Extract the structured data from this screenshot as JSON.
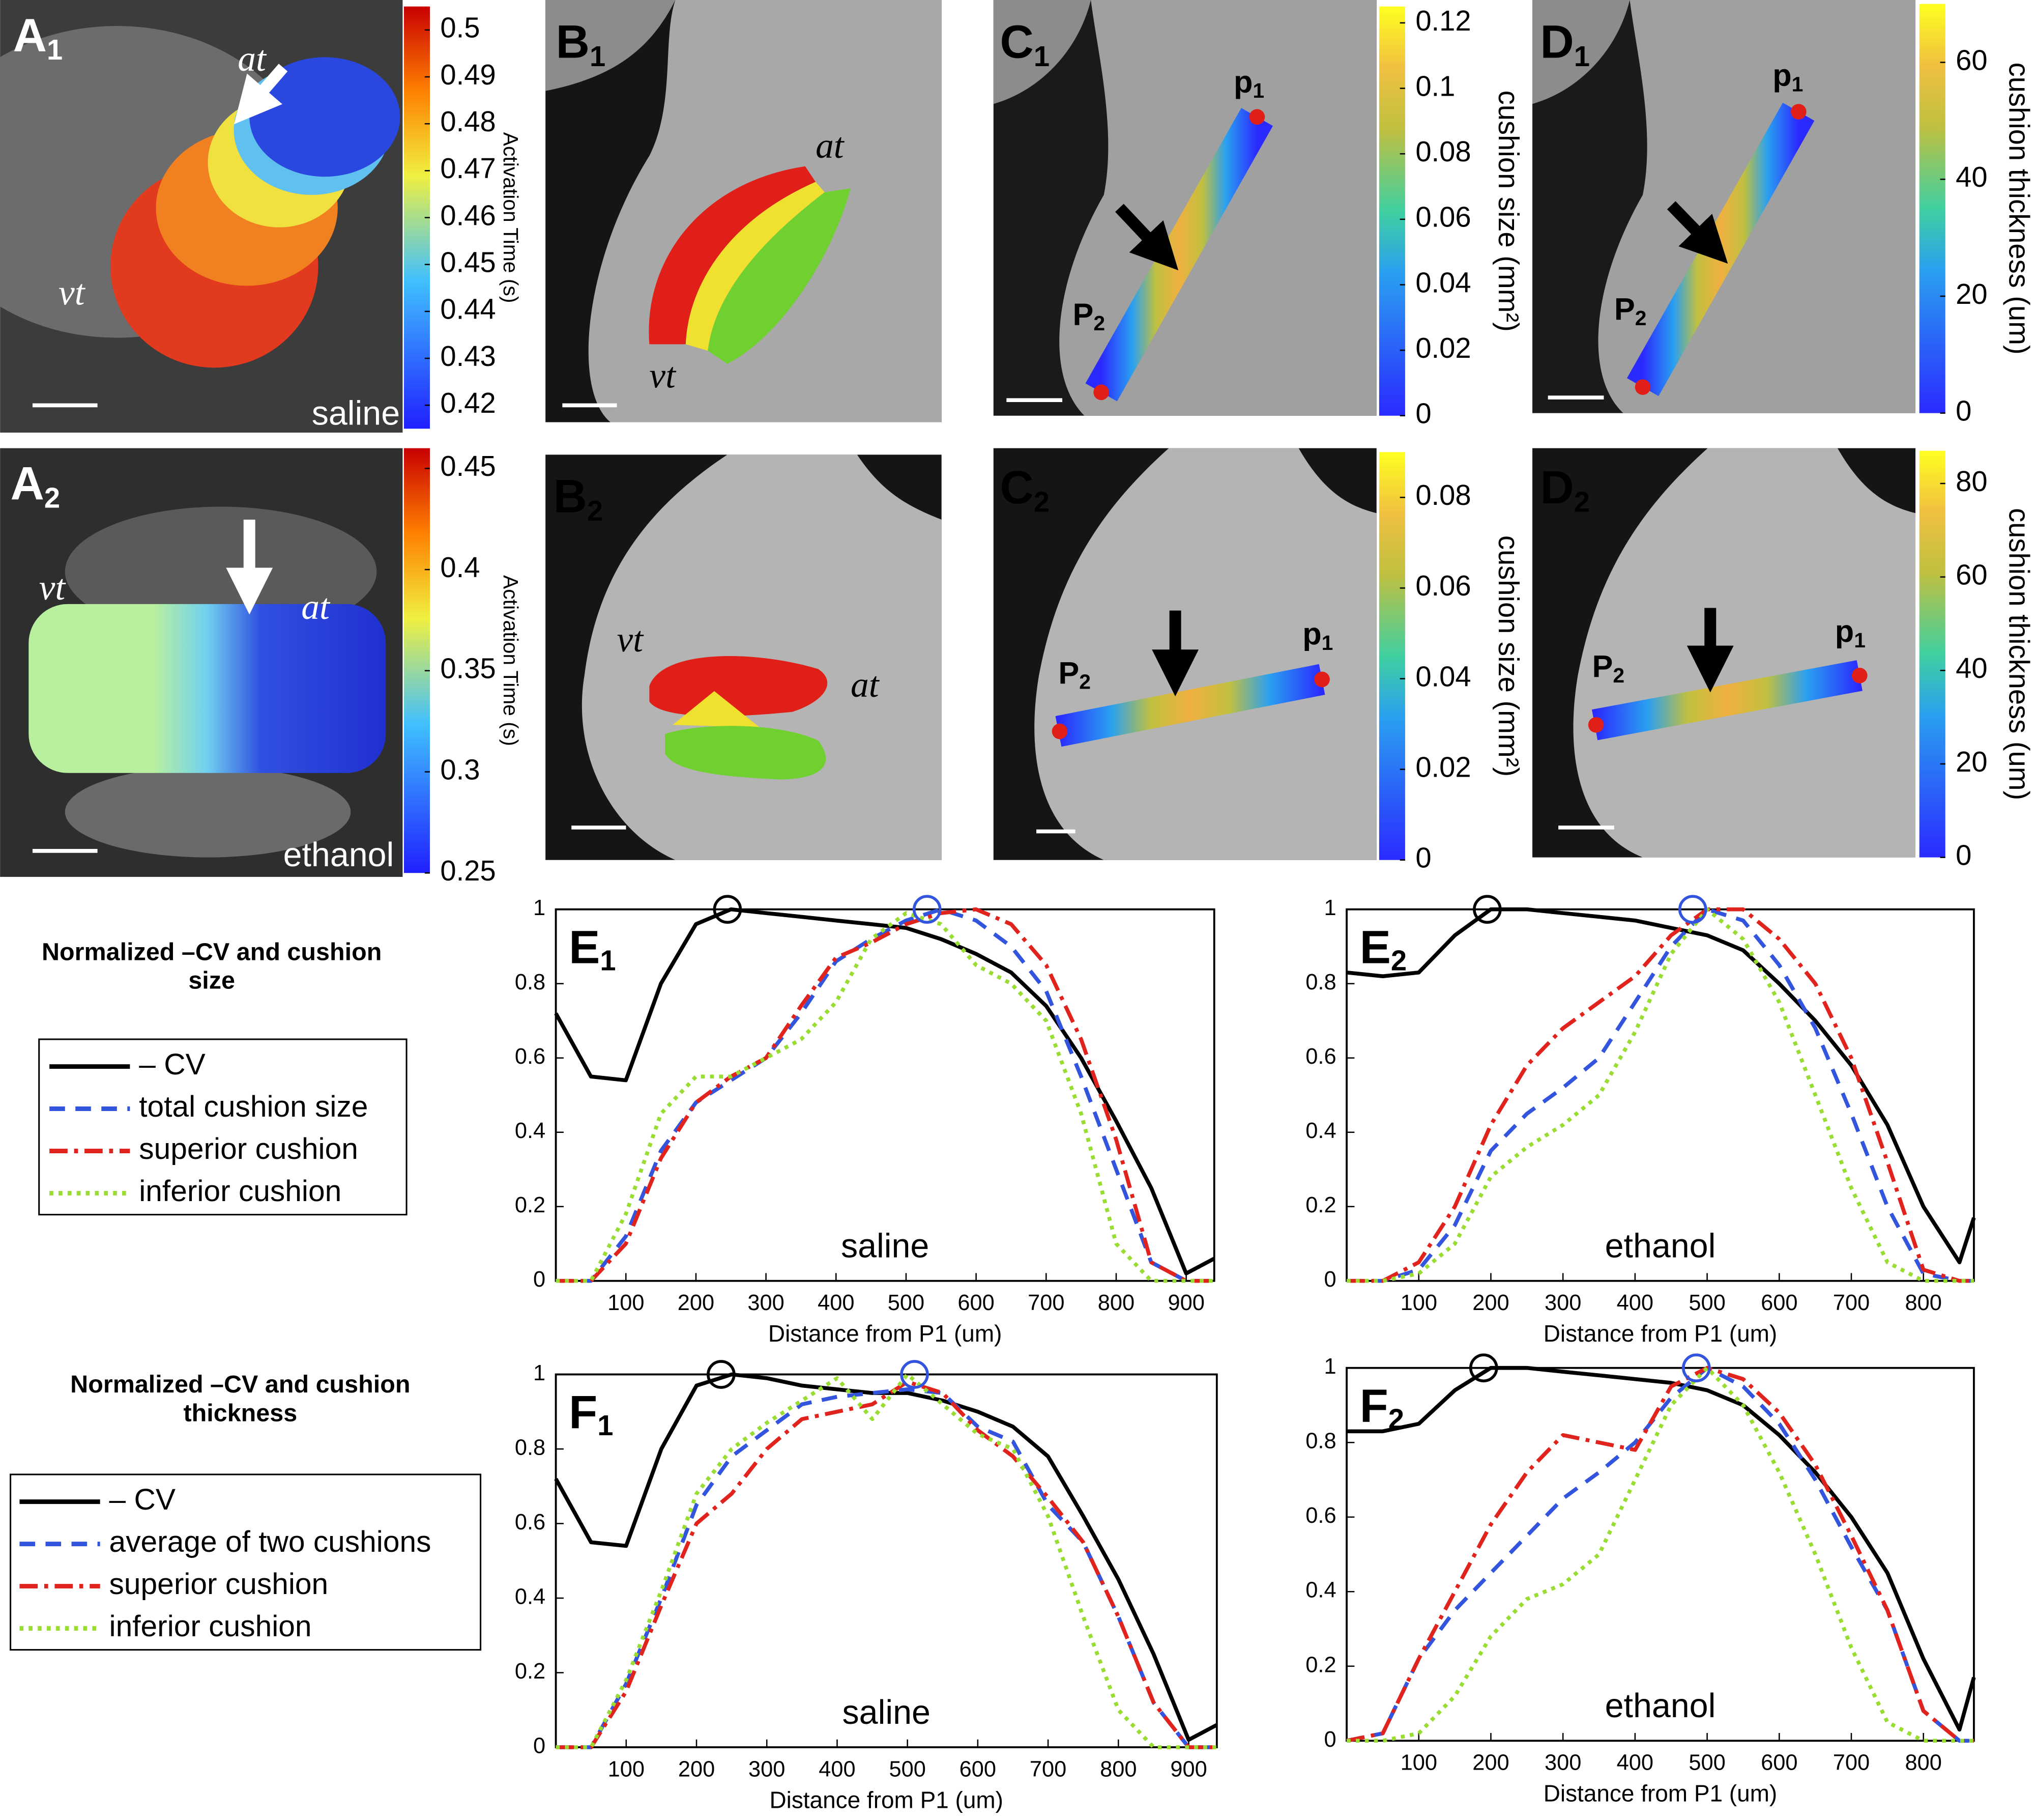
{
  "image_panels": [
    {
      "label": {
        "letter": "A",
        "sub": "1"
      },
      "annotations": [
        "at",
        "vt",
        "saline"
      ],
      "colorbar": {
        "label": "Activation Time (s)",
        "colormap": "jet",
        "lim": [
          0.415,
          0.505
        ],
        "ticks": [
          0.42,
          0.43,
          0.44,
          0.45,
          0.46,
          0.47,
          0.48,
          0.49,
          0.5
        ]
      }
    },
    {
      "label": {
        "letter": "A",
        "sub": "2"
      },
      "annotations": [
        "vt",
        "at",
        "ethanol"
      ],
      "colorbar": {
        "label": "Activation Time (s)",
        "colormap": "jet",
        "lim": [
          0.25,
          0.46
        ],
        "ticks": [
          0.25,
          0.3,
          0.35,
          0.4,
          0.45
        ]
      }
    },
    {
      "label": {
        "letter": "B",
        "sub": "1"
      },
      "annotations": [
        "at",
        "vt"
      ]
    },
    {
      "label": {
        "letter": "B",
        "sub": "2"
      },
      "annotations": [
        "vt",
        "at"
      ]
    },
    {
      "label": {
        "letter": "C",
        "sub": "1"
      },
      "points": [
        {
          "letter": "p",
          "sub": "1"
        },
        {
          "letter": "P",
          "sub": "2"
        }
      ],
      "colorbar": {
        "label": "cushion size (mm²)",
        "colormap": "parula",
        "lim": [
          0,
          0.125
        ],
        "ticks": [
          0,
          0.02,
          0.04,
          0.06,
          0.08,
          0.1,
          0.12
        ]
      }
    },
    {
      "label": {
        "letter": "C",
        "sub": "2"
      },
      "points": [
        {
          "letter": "P",
          "sub": "2"
        },
        {
          "letter": "p",
          "sub": "1"
        }
      ],
      "colorbar": {
        "label": "cushion size (mm²)",
        "colormap": "parula",
        "lim": [
          0,
          0.09
        ],
        "ticks": [
          0,
          0.02,
          0.04,
          0.06,
          0.08
        ]
      }
    },
    {
      "label": {
        "letter": "D",
        "sub": "1"
      },
      "points": [
        {
          "letter": "p",
          "sub": "1"
        },
        {
          "letter": "P",
          "sub": "2"
        }
      ],
      "colorbar": {
        "label": "cushion thickness (um)",
        "colormap": "parula",
        "lim": [
          0,
          70
        ],
        "ticks": [
          0,
          20,
          40,
          60
        ]
      }
    },
    {
      "label": {
        "letter": "D",
        "sub": "2"
      },
      "points": [
        {
          "letter": "P",
          "sub": "2"
        },
        {
          "letter": "p",
          "sub": "1"
        }
      ],
      "colorbar": {
        "label": "cushion thickness (um)",
        "colormap": "parula",
        "lim": [
          0,
          87
        ],
        "ticks": [
          0,
          20,
          40,
          60,
          80
        ]
      }
    }
  ],
  "chart_data": [
    {
      "type": "line",
      "label": {
        "letter": "E",
        "sub": "1"
      },
      "legend_title": "Normalized –CV and cushion size",
      "annotation": "saline",
      "xlabel": "Distance from P1 (um)",
      "x": [
        0,
        50,
        100,
        150,
        200,
        250,
        300,
        350,
        400,
        450,
        500,
        550,
        600,
        650,
        700,
        750,
        800,
        850,
        900,
        940
      ],
      "xlim": [
        0,
        940
      ],
      "xticks": [
        100,
        200,
        300,
        400,
        500,
        600,
        700,
        800,
        900
      ],
      "ylim": [
        0,
        1
      ],
      "yticks": [
        0,
        0.2,
        0.4,
        0.6,
        0.8,
        1
      ],
      "series": [
        {
          "name": "– CV",
          "color": "#000000",
          "style": "solid",
          "values": [
            0.72,
            0.55,
            0.54,
            0.8,
            0.96,
            1.0,
            0.99,
            0.98,
            0.97,
            0.96,
            0.95,
            0.92,
            0.88,
            0.83,
            0.74,
            0.6,
            0.43,
            0.25,
            0.02,
            0.06
          ]
        },
        {
          "name": "total cushion size",
          "color": "#3355dd",
          "style": "dashed",
          "values": [
            0,
            0,
            0.12,
            0.35,
            0.48,
            0.54,
            0.6,
            0.72,
            0.86,
            0.92,
            0.97,
            1.0,
            0.97,
            0.9,
            0.78,
            0.55,
            0.3,
            0.05,
            0,
            0
          ]
        },
        {
          "name": "superior cushion",
          "color": "#e0231c",
          "style": "dashdot",
          "values": [
            0,
            0,
            0.1,
            0.33,
            0.48,
            0.55,
            0.6,
            0.74,
            0.87,
            0.91,
            0.96,
            0.99,
            1.0,
            0.96,
            0.85,
            0.65,
            0.38,
            0.05,
            0,
            0
          ]
        },
        {
          "name": "inferior cushion",
          "color": "#99dd33",
          "style": "dotted",
          "values": [
            0,
            0,
            0.18,
            0.45,
            0.55,
            0.55,
            0.6,
            0.65,
            0.75,
            0.92,
            0.99,
            0.96,
            0.85,
            0.8,
            0.7,
            0.45,
            0.1,
            0,
            0,
            0
          ]
        }
      ],
      "peak_markers": [
        {
          "x": 245,
          "y": 1,
          "color": "#000000"
        },
        {
          "x": 530,
          "y": 1,
          "color": "#3355dd"
        }
      ]
    },
    {
      "type": "line",
      "label": {
        "letter": "E",
        "sub": "2"
      },
      "annotation": "ethanol",
      "xlabel": "Distance from P1 (um)",
      "x": [
        0,
        50,
        100,
        150,
        200,
        250,
        300,
        350,
        400,
        450,
        500,
        550,
        600,
        650,
        700,
        750,
        800,
        850,
        870
      ],
      "xlim": [
        0,
        870
      ],
      "xticks": [
        100,
        200,
        300,
        400,
        500,
        600,
        700,
        800
      ],
      "ylim": [
        0,
        1
      ],
      "yticks": [
        0,
        0.2,
        0.4,
        0.6,
        0.8,
        1
      ],
      "series": [
        {
          "color": "#000000",
          "style": "solid",
          "values": [
            0.83,
            0.82,
            0.83,
            0.93,
            1.0,
            1.0,
            0.99,
            0.98,
            0.97,
            0.95,
            0.93,
            0.89,
            0.8,
            0.7,
            0.58,
            0.42,
            0.2,
            0.05,
            0.17
          ]
        },
        {
          "color": "#3355dd",
          "style": "dashed",
          "values": [
            0,
            0,
            0.03,
            0.15,
            0.35,
            0.45,
            0.52,
            0.6,
            0.75,
            0.9,
            1.0,
            0.97,
            0.85,
            0.68,
            0.45,
            0.2,
            0.02,
            0,
            0
          ]
        },
        {
          "color": "#e0231c",
          "style": "dashdot",
          "values": [
            0,
            0,
            0.05,
            0.2,
            0.42,
            0.58,
            0.68,
            0.75,
            0.82,
            0.93,
            1.0,
            1.0,
            0.92,
            0.8,
            0.6,
            0.32,
            0.03,
            0,
            0
          ]
        },
        {
          "color": "#99dd33",
          "style": "dotted",
          "values": [
            0,
            0,
            0.02,
            0.1,
            0.28,
            0.36,
            0.42,
            0.5,
            0.67,
            0.88,
            1.0,
            0.92,
            0.75,
            0.5,
            0.25,
            0.05,
            0,
            0,
            0
          ]
        }
      ],
      "peak_markers": [
        {
          "x": 195,
          "y": 1,
          "color": "#000000"
        },
        {
          "x": 480,
          "y": 1,
          "color": "#3355dd"
        }
      ]
    },
    {
      "type": "line",
      "label": {
        "letter": "F",
        "sub": "1"
      },
      "legend_title": "Normalized –CV and cushion thickness",
      "annotation": "saline",
      "xlabel": "Distance from P1 (um)",
      "x": [
        0,
        50,
        100,
        150,
        200,
        250,
        300,
        350,
        400,
        450,
        500,
        550,
        600,
        650,
        700,
        750,
        800,
        850,
        900,
        940
      ],
      "xlim": [
        0,
        940
      ],
      "xticks": [
        100,
        200,
        300,
        400,
        500,
        600,
        700,
        800,
        900
      ],
      "ylim": [
        0,
        1
      ],
      "yticks": [
        0,
        0.2,
        0.4,
        0.6,
        0.8,
        1
      ],
      "series": [
        {
          "name": "– CV",
          "color": "#000000",
          "style": "solid",
          "values": [
            0.72,
            0.55,
            0.54,
            0.8,
            0.97,
            1.0,
            0.99,
            0.97,
            0.96,
            0.95,
            0.95,
            0.93,
            0.9,
            0.86,
            0.78,
            0.62,
            0.45,
            0.25,
            0.02,
            0.06
          ]
        },
        {
          "name": "average of two cushions",
          "color": "#3355dd",
          "style": "dashed",
          "values": [
            0,
            0,
            0.17,
            0.4,
            0.65,
            0.78,
            0.85,
            0.92,
            0.94,
            0.95,
            0.96,
            0.95,
            0.86,
            0.82,
            0.65,
            0.55,
            0.35,
            0.12,
            0,
            0
          ]
        },
        {
          "name": "superior cushion",
          "color": "#e0231c",
          "style": "dashdot",
          "values": [
            0,
            0,
            0.15,
            0.38,
            0.6,
            0.68,
            0.8,
            0.88,
            0.9,
            0.92,
            0.98,
            0.95,
            0.85,
            0.78,
            0.67,
            0.55,
            0.35,
            0.12,
            0,
            0
          ]
        },
        {
          "name": "inferior cushion",
          "color": "#99dd33",
          "style": "dotted",
          "values": [
            0,
            0,
            0.18,
            0.42,
            0.68,
            0.8,
            0.87,
            0.93,
            0.99,
            0.88,
            1.0,
            0.92,
            0.84,
            0.8,
            0.62,
            0.35,
            0.1,
            0,
            0,
            0
          ]
        }
      ],
      "peak_markers": [
        {
          "x": 235,
          "y": 1,
          "color": "#000000"
        },
        {
          "x": 510,
          "y": 1,
          "color": "#3355dd"
        }
      ]
    },
    {
      "type": "line",
      "label": {
        "letter": "F",
        "sub": "2"
      },
      "annotation": "ethanol",
      "xlabel": "Distance from P1 (um)",
      "x": [
        0,
        50,
        100,
        150,
        200,
        250,
        300,
        350,
        400,
        450,
        500,
        550,
        600,
        650,
        700,
        750,
        800,
        850,
        870
      ],
      "xlim": [
        0,
        870
      ],
      "xticks": [
        100,
        200,
        300,
        400,
        500,
        600,
        700,
        800
      ],
      "ylim": [
        0,
        1
      ],
      "yticks": [
        0,
        0.2,
        0.4,
        0.6,
        0.8,
        1
      ],
      "series": [
        {
          "color": "#000000",
          "style": "solid",
          "values": [
            0.83,
            0.83,
            0.85,
            0.94,
            1.0,
            1.0,
            0.99,
            0.98,
            0.97,
            0.96,
            0.94,
            0.9,
            0.82,
            0.72,
            0.6,
            0.45,
            0.22,
            0.03,
            0.17
          ]
        },
        {
          "color": "#3355dd",
          "style": "dashed",
          "values": [
            0,
            0.02,
            0.22,
            0.35,
            0.45,
            0.55,
            0.65,
            0.72,
            0.8,
            0.92,
            1.0,
            0.95,
            0.85,
            0.7,
            0.52,
            0.35,
            0.08,
            0,
            0
          ]
        },
        {
          "color": "#e0231c",
          "style": "dashdot",
          "values": [
            0,
            0.02,
            0.22,
            0.4,
            0.58,
            0.72,
            0.82,
            0.8,
            0.78,
            0.95,
            1.0,
            0.97,
            0.88,
            0.74,
            0.55,
            0.35,
            0.08,
            0,
            0
          ]
        },
        {
          "color": "#99dd33",
          "style": "dotted",
          "values": [
            0,
            0,
            0.02,
            0.12,
            0.28,
            0.38,
            0.42,
            0.5,
            0.7,
            0.9,
            1.0,
            0.9,
            0.72,
            0.5,
            0.25,
            0.05,
            0,
            0,
            0
          ]
        }
      ],
      "peak_markers": [
        {
          "x": 190,
          "y": 1,
          "color": "#000000"
        },
        {
          "x": 485,
          "y": 1,
          "color": "#3355dd"
        }
      ]
    }
  ]
}
